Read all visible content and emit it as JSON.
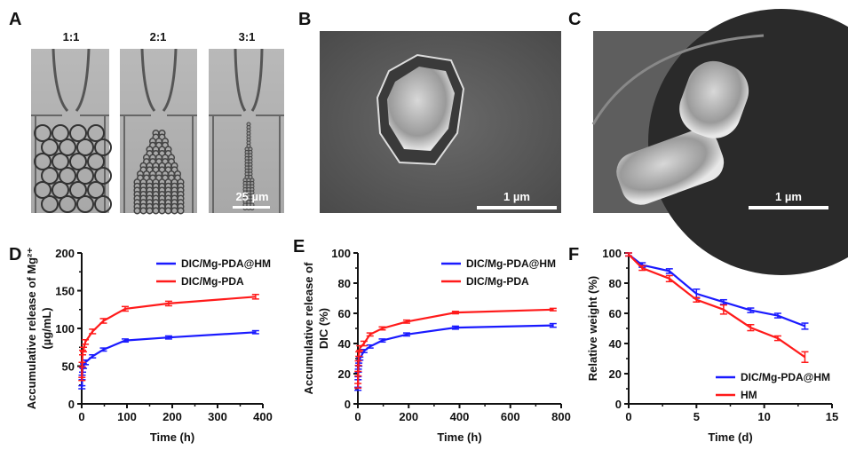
{
  "panels": {
    "A": {
      "letter": "A",
      "ratios": [
        "1:1",
        "2:1",
        "3:1"
      ],
      "scale_bar": "25 µm"
    },
    "B": {
      "letter": "B",
      "scale_bar": "1 µm"
    },
    "C": {
      "letter": "C",
      "scale_bar": "1 µm"
    },
    "D": {
      "letter": "D"
    },
    "E": {
      "letter": "E"
    },
    "F": {
      "letter": "F"
    }
  },
  "colors": {
    "blue": "#1a1aff",
    "red": "#ff1a1a"
  },
  "chart_data": [
    {
      "type": "line",
      "id": "D",
      "xlabel": "Time (h)",
      "ylabel": [
        "Accumulative release of Mg²⁺",
        "(µg/mL)"
      ],
      "xlim": [
        0,
        400
      ],
      "ylim": [
        0,
        200
      ],
      "xticks": [
        0,
        100,
        200,
        300,
        400
      ],
      "yticks": [
        0,
        50,
        100,
        150,
        200
      ],
      "legend": "top-right",
      "x": [
        0.5,
        1,
        2,
        4,
        8,
        24,
        48,
        96,
        192,
        384
      ],
      "series": [
        {
          "name": "DIC/Mg-PDA@HM",
          "color": "#1a1aff",
          "values": [
            22,
            35,
            45,
            50,
            55,
            63,
            72,
            84,
            88,
            95
          ],
          "err": [
            2,
            3,
            3,
            3,
            3,
            2,
            2,
            2,
            2,
            2
          ]
        },
        {
          "name": "DIC/Mg-PDA",
          "color": "#ff1a1a",
          "values": [
            33,
            52,
            68,
            72,
            82,
            96,
            110,
            126,
            133,
            142
          ],
          "err": [
            2,
            3,
            3,
            3,
            3,
            3,
            3,
            3,
            3,
            3
          ]
        }
      ]
    },
    {
      "type": "line",
      "id": "E",
      "xlabel": "Time (h)",
      "ylabel": [
        "Accumulative release of",
        "DIC (%)"
      ],
      "xlim": [
        0,
        800
      ],
      "ylim": [
        0,
        100
      ],
      "xticks": [
        0,
        200,
        400,
        600,
        800
      ],
      "yticks": [
        0,
        20,
        40,
        60,
        80,
        100
      ],
      "legend": "top-right",
      "x": [
        0.5,
        1,
        2,
        4,
        8,
        24,
        48,
        96,
        192,
        384,
        768
      ],
      "series": [
        {
          "name": "DIC/Mg-PDA@HM",
          "color": "#1a1aff",
          "values": [
            10,
            17,
            22,
            26,
            30,
            35,
            38,
            42,
            46,
            50.5,
            52
          ],
          "err": [
            1,
            1,
            1,
            1,
            1,
            1,
            1,
            1,
            1,
            1,
            1.2
          ]
        },
        {
          "name": "DIC/Mg-PDA",
          "color": "#ff1a1a",
          "values": [
            12,
            20,
            27,
            33,
            37,
            40,
            46,
            50,
            54.5,
            60.5,
            62.5
          ],
          "err": [
            1.5,
            1.5,
            1.5,
            1.5,
            1.5,
            1.5,
            1,
            1,
            1,
            0.8,
            0.8
          ]
        }
      ]
    },
    {
      "type": "line",
      "id": "F",
      "xlabel": "Time (d)",
      "ylabel": [
        "Relative weight (%)"
      ],
      "xlim": [
        0,
        15
      ],
      "ylim": [
        0,
        100
      ],
      "xticks": [
        0,
        5,
        10,
        15
      ],
      "yticks": [
        0,
        20,
        40,
        60,
        80,
        100
      ],
      "legend": "bottom-right",
      "x": [
        0,
        1,
        3,
        5,
        7,
        9,
        11,
        13
      ],
      "series": [
        {
          "name": "DIC/Mg-PDA@HM",
          "color": "#1a1aff",
          "values": [
            99,
            92,
            88,
            73,
            67.5,
            62,
            58.5,
            51.5
          ],
          "err": [
            1,
            1.5,
            1.5,
            3,
            1.5,
            1.5,
            1.5,
            2
          ]
        },
        {
          "name": "HM",
          "color": "#ff1a1a",
          "values": [
            99,
            90,
            83,
            69,
            62.5,
            50.5,
            43.5,
            31
          ],
          "err": [
            1,
            1.5,
            2,
            1.5,
            3,
            2,
            1.5,
            3.5
          ]
        }
      ]
    }
  ]
}
